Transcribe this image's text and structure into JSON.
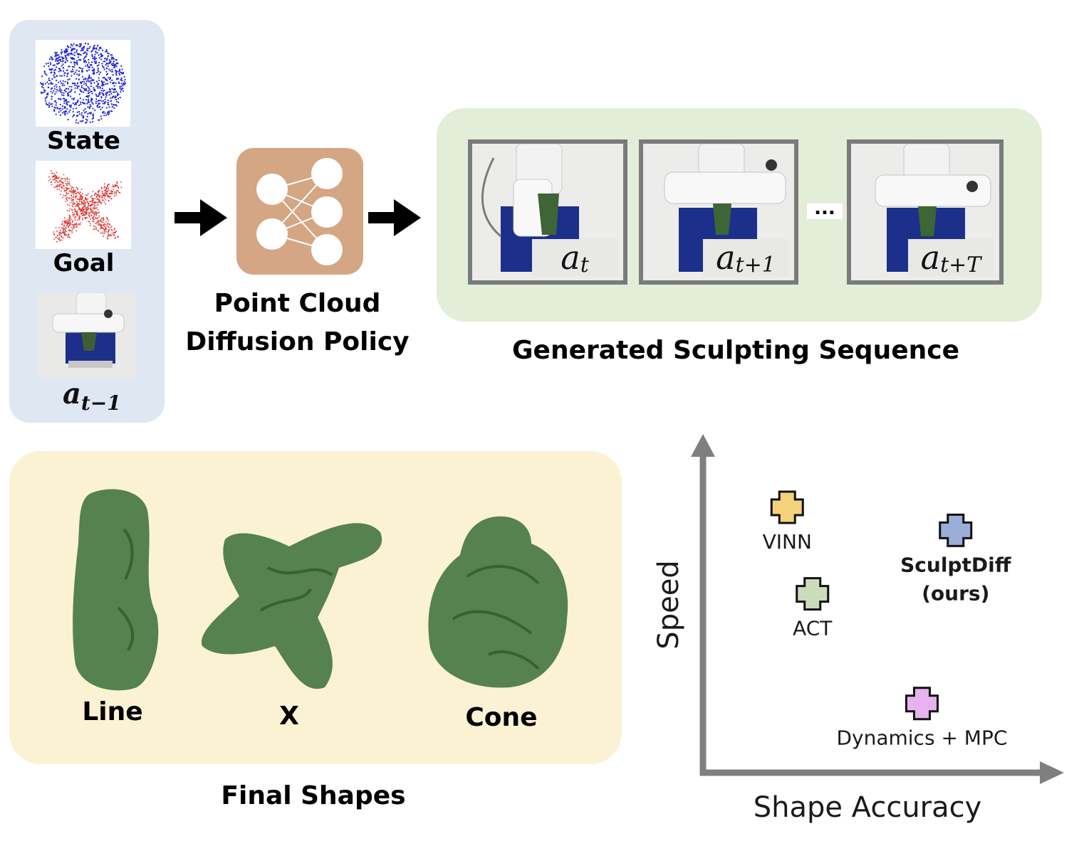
{
  "inputs": {
    "state_label": "State",
    "goal_label": "Goal",
    "prev_action_base": "a",
    "prev_action_sub": "t−1"
  },
  "policy": {
    "line1": "Point Cloud",
    "line2": "Diffusion Policy",
    "icon": "neural-network-icon",
    "color": "#d4a684"
  },
  "sequence": {
    "title": "Generated Sculpting Sequence",
    "ellipsis": "...",
    "frames": [
      {
        "base": "a",
        "sub": "t"
      },
      {
        "base": "a",
        "sub": "t+1"
      },
      {
        "base": "a",
        "sub": "t+T"
      }
    ]
  },
  "shapes": {
    "title": "Final Shapes",
    "items": [
      "Line",
      "X",
      "Cone"
    ]
  },
  "chart_data": {
    "type": "scatter",
    "xlabel": "Shape Accuracy",
    "ylabel": "Speed",
    "ticks": "none",
    "points": [
      {
        "label": "VINN",
        "x": 1.0,
        "y": 4.6,
        "color": "#f4d27a",
        "bold": false
      },
      {
        "label": "SculptDiff\n(ours)",
        "x": 3.0,
        "y": 4.2,
        "color": "#9aaed9",
        "bold": true
      },
      {
        "label": "ACT",
        "x": 1.3,
        "y": 3.1,
        "color": "#cbdcbb",
        "bold": false
      },
      {
        "label": "Dynamics + MPC",
        "x": 2.6,
        "y": 1.2,
        "color": "#e7b3ee",
        "bold": false
      }
    ],
    "xlim": [
      0,
      4
    ],
    "ylim": [
      0,
      5.5
    ]
  }
}
